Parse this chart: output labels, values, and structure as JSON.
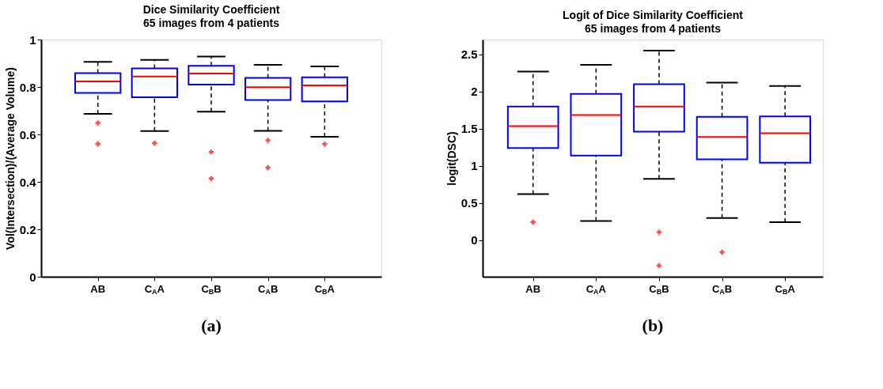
{
  "chart_data": [
    {
      "type": "box",
      "title": "Dice Similarity Coefficient",
      "subtitle": "65 images from 4 patients",
      "ylabel": "Vol(Intersection)/(Average Volume)",
      "categories": [
        "AB",
        "C$_{A}$A",
        "C$_{B}$B",
        "C$_{A}$B",
        "C$_{B}$A"
      ],
      "ylim": [
        0,
        1
      ],
      "yticks": [
        0,
        0.2,
        0.4,
        0.6,
        0.8,
        1
      ],
      "grid": false,
      "marker": "cross",
      "annotations": [
        "(a)"
      ],
      "boxes": [
        {
          "low": 0.687,
          "q1": 0.775,
          "median": 0.823,
          "q3": 0.858,
          "high": 0.906,
          "outliers": [
            0.648,
            0.56
          ]
        },
        {
          "low": 0.614,
          "q1": 0.757,
          "median": 0.844,
          "q3": 0.878,
          "high": 0.914,
          "outliers": [
            0.563
          ]
        },
        {
          "low": 0.696,
          "q1": 0.81,
          "median": 0.857,
          "q3": 0.889,
          "high": 0.928,
          "outliers": [
            0.526,
            0.414
          ]
        },
        {
          "low": 0.615,
          "q1": 0.745,
          "median": 0.799,
          "q3": 0.838,
          "high": 0.893,
          "outliers": [
            0.575,
            0.46
          ]
        },
        {
          "low": 0.59,
          "q1": 0.739,
          "median": 0.807,
          "q3": 0.841,
          "high": 0.887,
          "outliers": [
            0.559
          ]
        }
      ]
    },
    {
      "type": "box",
      "title": "Logit of Dice Similarity Coefficient",
      "subtitle": "65 images from 4 patients",
      "ylabel": "logit(DSC)",
      "categories": [
        "AB",
        "C$_{A}$A",
        "C$_{B}$B",
        "C$_{A}$B",
        "C$_{B}$A"
      ],
      "ylim": [
        -0.49,
        2.7
      ],
      "yticks": [
        0,
        0.5,
        1,
        1.5,
        2,
        2.5
      ],
      "grid": false,
      "marker": "cross",
      "annotations": [
        "(b)"
      ],
      "boxes": [
        {
          "low": 0.62,
          "q1": 1.24,
          "median": 1.535,
          "q3": 1.8,
          "high": 2.27,
          "outliers": [
            0.245
          ]
        },
        {
          "low": 0.26,
          "q1": 1.14,
          "median": 1.685,
          "q3": 1.97,
          "high": 2.36
        },
        {
          "low": 0.825,
          "q1": 1.46,
          "median": 1.8,
          "q3": 2.1,
          "high": 2.55,
          "outliers": [
            0.11,
            -0.34
          ]
        },
        {
          "low": 0.3,
          "q1": 1.09,
          "median": 1.39,
          "q3": 1.66,
          "high": 2.12,
          "outliers": [
            -0.16
          ]
        },
        {
          "low": 0.245,
          "q1": 1.045,
          "median": 1.44,
          "q3": 1.665,
          "high": 2.075
        }
      ]
    }
  ]
}
